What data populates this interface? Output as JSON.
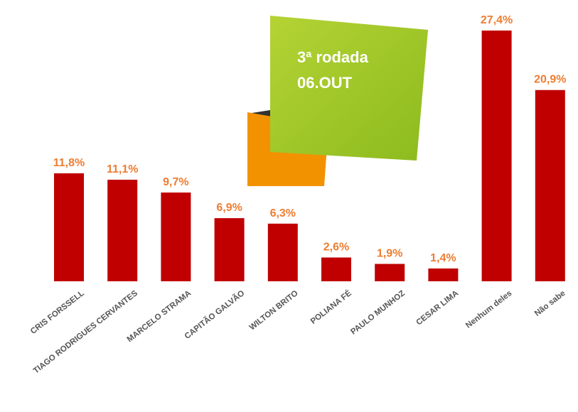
{
  "chart_data": {
    "type": "bar",
    "annotations": [
      "3ª rodada",
      "06.OUT"
    ],
    "categories": [
      "CRIS FORSSELL",
      "TIAGO RODRIGUES CERVANTES",
      "MARCELO STRAMA",
      "CAPITÃO GALVÃO",
      "WILTON BRITO",
      "POLIANA FÉ",
      "PAULO MUNHOZ",
      "CESAR LIMA",
      "Nenhum deles",
      "Não sabe"
    ],
    "values": [
      11.8,
      11.1,
      9.7,
      6.9,
      6.3,
      2.6,
      1.9,
      1.4,
      27.4,
      20.9
    ],
    "value_labels": [
      "11,8%",
      "11,1%",
      "9,7%",
      "6,9%",
      "6,3%",
      "2,6%",
      "1,9%",
      "1,4%",
      "27,4%",
      "20,9%"
    ],
    "color": "#c00000",
    "label_color": "#ed7d31"
  }
}
